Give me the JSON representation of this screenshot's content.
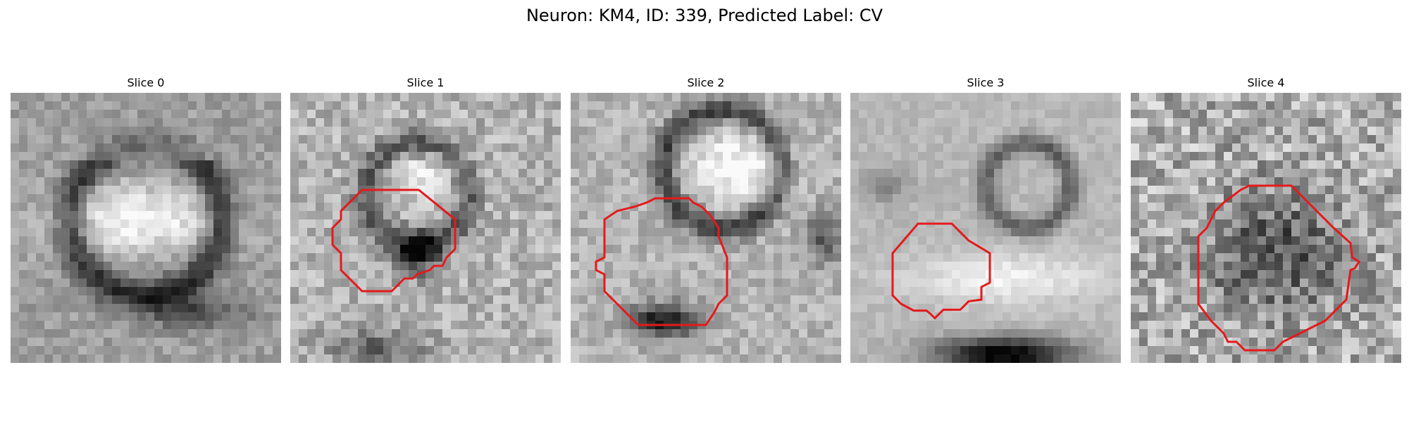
{
  "figure": {
    "title": "Neuron: KM4, ID: 339, Predicted Label: CV"
  },
  "panels": [
    {
      "title": "Slice 0",
      "contour": false,
      "texture": "cell-body",
      "seed": 11
    },
    {
      "title": "Slice 1",
      "contour": true,
      "texture": "mixed-dark",
      "seed": 23
    },
    {
      "title": "Slice 2",
      "contour": true,
      "texture": "ring-bright",
      "seed": 37
    },
    {
      "title": "Slice 3",
      "contour": true,
      "texture": "smooth-bright",
      "seed": 51
    },
    {
      "title": "Slice 4",
      "contour": true,
      "texture": "noisy-dark-center",
      "seed": 73
    }
  ],
  "colors": {
    "contour": "#e41a1c",
    "background": "#ffffff"
  }
}
